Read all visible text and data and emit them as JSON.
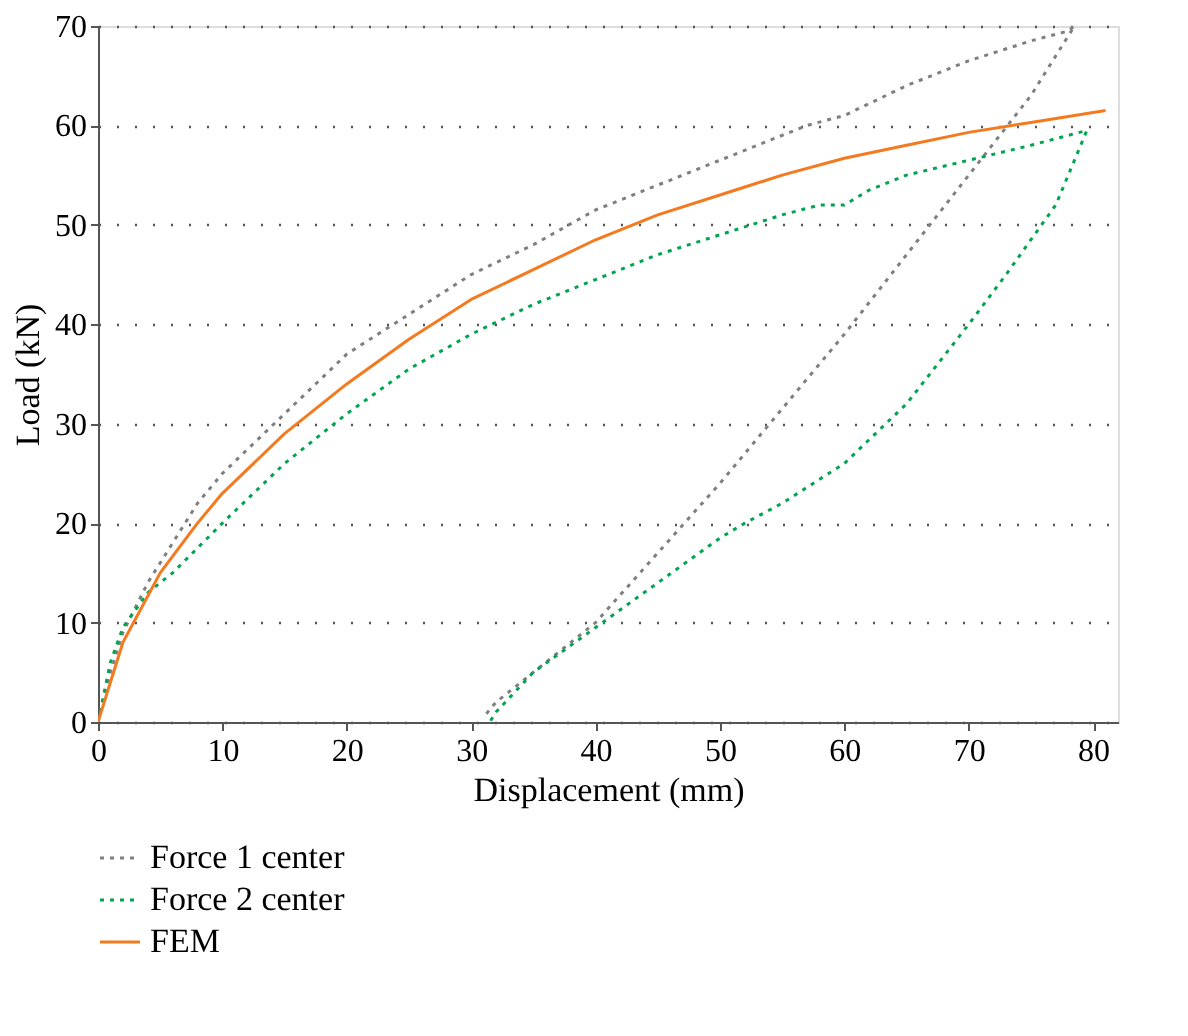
{
  "chart_data": {
    "type": "line",
    "xlabel": "Displacement (mm)",
    "ylabel": "Load (kN)",
    "xlim": [
      0,
      82
    ],
    "ylim": [
      0,
      70
    ],
    "xticks": [
      0,
      10,
      20,
      30,
      40,
      50,
      60,
      70,
      80
    ],
    "yticks": [
      0,
      10,
      20,
      30,
      40,
      50,
      60,
      70
    ],
    "grid": "y",
    "legend": "bottom left",
    "marker": "none",
    "series": [
      {
        "name": "Force 1 center",
        "color": "#7f7f7f",
        "line_style": "dotted",
        "x": [
          0,
          1,
          2,
          4,
          6,
          8,
          10,
          15,
          20,
          25,
          30,
          35,
          40,
          45,
          50,
          55,
          57,
          60,
          65,
          70,
          75,
          78,
          78.5,
          75,
          70,
          65,
          60,
          55,
          50,
          45,
          40,
          35,
          32,
          31
        ],
        "values": [
          0,
          5,
          9,
          14,
          18,
          22,
          25,
          31,
          37,
          41,
          45,
          48,
          51.5,
          54,
          56.5,
          59,
          60,
          61,
          64,
          66.5,
          68.5,
          69.5,
          70,
          63,
          55,
          47,
          39,
          31.5,
          24,
          17,
          10,
          5,
          2,
          0.5
        ]
      },
      {
        "name": "Force 2 center",
        "color": "#00a550",
        "line_style": "dotted",
        "x": [
          0,
          1,
          2,
          4,
          6,
          10,
          15,
          20,
          25,
          30,
          35,
          40,
          45,
          50,
          55,
          58,
          60,
          62,
          65,
          70,
          75,
          79.5,
          77,
          73,
          70,
          65,
          60,
          55,
          52,
          50,
          45,
          40,
          35,
          32,
          31.5
        ],
        "values": [
          0,
          6,
          9.5,
          13,
          15,
          20,
          26,
          31,
          35.5,
          39,
          42,
          44.5,
          47,
          49,
          51,
          52,
          52,
          53.5,
          55,
          56.5,
          58,
          59.5,
          52,
          45,
          40,
          32,
          26,
          22,
          20,
          18.5,
          14,
          9.5,
          5,
          1,
          0
        ]
      },
      {
        "name": "FEM",
        "color": "#f47a20",
        "line_style": "solid",
        "x": [
          0,
          1,
          2,
          5,
          8,
          10,
          15,
          20,
          25,
          30,
          35,
          40,
          45,
          50,
          55,
          60,
          65,
          70,
          75,
          81
        ],
        "values": [
          0,
          4,
          8,
          15,
          20,
          23,
          29,
          34,
          38.5,
          42.5,
          45.5,
          48.5,
          51,
          53,
          55,
          56.7,
          58,
          59.3,
          60.3,
          61.5
        ]
      }
    ]
  }
}
